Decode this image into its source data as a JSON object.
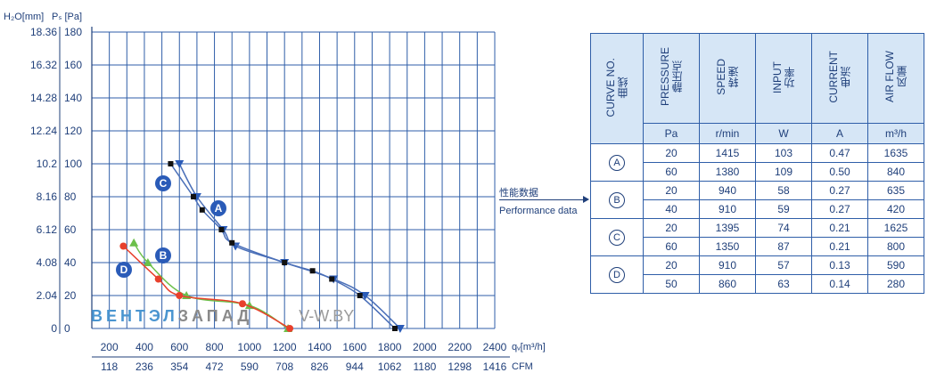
{
  "chart_data": {
    "type": "line",
    "y_axis_left_title": "H₂O[mm]",
    "y_axis_right_title": "Pₛ [Pa]",
    "y_ticks_mm": [
      "18.36",
      "16.32",
      "14.28",
      "12.24",
      "10.2",
      "8.16",
      "6.12",
      "4.08",
      "2.04",
      "0"
    ],
    "y_ticks_pa": [
      "180",
      "160",
      "140",
      "120",
      "100",
      "80",
      "60",
      "40",
      "20",
      "0"
    ],
    "ylim": [
      0,
      180
    ],
    "x_axis_title_m3h": "qᵥ[m³/h]",
    "x_axis_title_cfm": "CFM",
    "x_ticks_m3h": [
      "200",
      "400",
      "600",
      "800",
      "1000",
      "1200",
      "1400",
      "1600",
      "1800",
      "2000",
      "2200",
      "2400"
    ],
    "x_ticks_cfm": [
      "118",
      "236",
      "354",
      "472",
      "590",
      "708",
      "826",
      "944",
      "1062",
      "1180",
      "1298",
      "1416"
    ],
    "xlim": [
      100,
      2400
    ],
    "series": [
      {
        "name": "A",
        "color": "#2a5bb8",
        "marker": "triangle-down",
        "x": [
          600,
          700,
          850,
          920,
          1200,
          1480,
          1660,
          1860
        ],
        "y": [
          100,
          80,
          60,
          50,
          40,
          30,
          20,
          0
        ]
      },
      {
        "name": "C",
        "color": "#111111",
        "marker": "square",
        "x": [
          550,
          680,
          730,
          840,
          900,
          1200,
          1360,
          1470,
          1630,
          1830
        ],
        "y": [
          100,
          80,
          72,
          60,
          52,
          40,
          35,
          30,
          20,
          0
        ]
      },
      {
        "name": "B",
        "color": "#6cc04a",
        "marker": "triangle-up",
        "x": [
          340,
          420,
          640,
          1000,
          1220
        ],
        "y": [
          52,
          40,
          20,
          14,
          0
        ]
      },
      {
        "name": "D",
        "color": "#e8402c",
        "marker": "circle",
        "x": [
          280,
          480,
          600,
          960,
          1230
        ],
        "y": [
          50,
          30,
          20,
          15,
          0
        ]
      }
    ]
  },
  "watermark": {
    "part1": "ВЕНТЭЛ",
    "part2": "ЗАПАД",
    "part3": "V-W.BY"
  },
  "perf_label_cn": "性能数据",
  "perf_label_en": "Performance data",
  "table": {
    "headers": [
      "CURVE NO.\n曲线",
      "PRESSURE\n静压点",
      "SPEED\n转速",
      "INPUT\n功率",
      "CURRENT\n电流",
      "AIR FLOW\n风量"
    ],
    "units": [
      "",
      "Pa",
      "r/min",
      "W",
      "A",
      "m³/h"
    ],
    "groups": [
      {
        "curve": "A",
        "rows": [
          [
            "20",
            "1415",
            "103",
            "0.47",
            "1635"
          ],
          [
            "60",
            "1380",
            "109",
            "0.50",
            "840"
          ]
        ]
      },
      {
        "curve": "B",
        "rows": [
          [
            "20",
            "940",
            "58",
            "0.27",
            "635"
          ],
          [
            "40",
            "910",
            "59",
            "0.27",
            "420"
          ]
        ]
      },
      {
        "curve": "C",
        "rows": [
          [
            "20",
            "1395",
            "74",
            "0.21",
            "1625"
          ],
          [
            "60",
            "1350",
            "87",
            "0.21",
            "800"
          ]
        ]
      },
      {
        "curve": "D",
        "rows": [
          [
            "20",
            "910",
            "57",
            "0.13",
            "590"
          ],
          [
            "50",
            "860",
            "63",
            "0.14",
            "280"
          ]
        ]
      }
    ]
  }
}
